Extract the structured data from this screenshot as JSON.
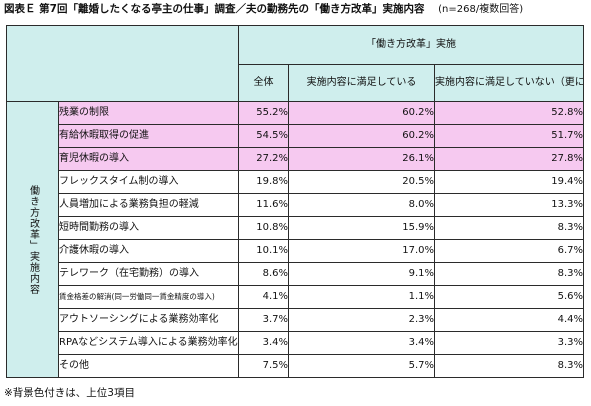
{
  "title": {
    "text": "図表Ｅ 第7回「離婚したくなる亭主の仕事」調査／夫の勤務先の「働き方改革」実施内容",
    "note": "(n=268/複数回答)"
  },
  "table": {
    "group_header": "「働き方改革」実施",
    "columns": [
      "全体",
      "実施内容に満足している",
      "実施内容に満足していない（更に「働き方改革」を進めてほしい）"
    ],
    "row_group_label": "働き方改革」実施内容",
    "highlight_color": "#f6c9f0",
    "header_color": "#cfeeed",
    "rows": [
      {
        "label": "残業の制限",
        "values": [
          "55.2%",
          "60.2%",
          "52.8%"
        ],
        "top3": true
      },
      {
        "label": "有給休暇取得の促進",
        "values": [
          "54.5%",
          "60.2%",
          "51.7%"
        ],
        "top3": true
      },
      {
        "label": "育児休暇の導入",
        "values": [
          "27.2%",
          "26.1%",
          "27.8%"
        ],
        "top3": true
      },
      {
        "label": "フレックスタイム制の導入",
        "values": [
          "19.8%",
          "20.5%",
          "19.4%"
        ],
        "top3": false
      },
      {
        "label": "人員増加による業務負担の軽減",
        "values": [
          "11.6%",
          "8.0%",
          "13.3%"
        ],
        "top3": false
      },
      {
        "label": "短時間勤務の導入",
        "values": [
          "10.8%",
          "15.9%",
          "8.3%"
        ],
        "top3": false
      },
      {
        "label": "介護休暇の導入",
        "values": [
          "10.1%",
          "17.0%",
          "6.7%"
        ],
        "top3": false
      },
      {
        "label": "テレワーク（在宅勤務）の導入",
        "values": [
          "8.6%",
          "9.1%",
          "8.3%"
        ],
        "top3": false
      },
      {
        "label": "賃金格差の解消(同一労働同一賃金精度の導入)",
        "values": [
          "4.1%",
          "1.1%",
          "5.6%"
        ],
        "top3": false,
        "small": true
      },
      {
        "label": "アウトソーシングによる業務効率化",
        "values": [
          "3.7%",
          "2.3%",
          "4.4%"
        ],
        "top3": false
      },
      {
        "label": "RPAなどシステム導入による業務効率化",
        "values": [
          "3.4%",
          "3.4%",
          "3.3%"
        ],
        "top3": false
      },
      {
        "label": "その他",
        "values": [
          "7.5%",
          "5.7%",
          "8.3%"
        ],
        "top3": false
      }
    ]
  },
  "footer": "※背景色付きは、上位3項目"
}
